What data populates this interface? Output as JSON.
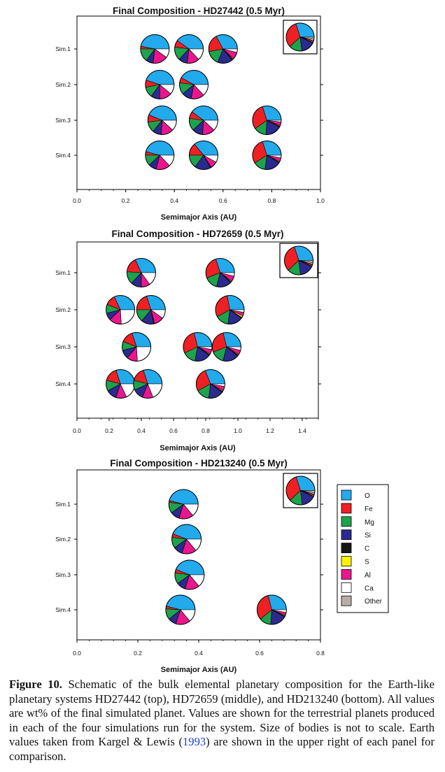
{
  "colors": {
    "O": "#22aaec",
    "Fe": "#ee2024",
    "Mg": "#1ea24c",
    "Si": "#2b2a8f",
    "C": "#161616",
    "S": "#fff200",
    "Al": "#ec168c",
    "Ca": "#ffffff",
    "Other": "#b8aea6"
  },
  "legend": {
    "entries": [
      "O",
      "Fe",
      "Mg",
      "Si",
      "C",
      "S",
      "Al",
      "Ca",
      "Other"
    ]
  },
  "chart_data": [
    {
      "type": "pie",
      "title": "Final Composition - HD27442 (0.5 Myr)",
      "xlabel": "Semimajor Axis (AU)",
      "xlim": [
        0,
        1.0
      ],
      "xticks": [
        "0.0",
        "0.2",
        "0.4",
        "0.6",
        "0.8",
        "1.0"
      ],
      "categories": [
        "Sim.1",
        "Sim.2",
        "Sim.3",
        "Sim.4"
      ],
      "earth_values_wt_percent": {
        "O": 30,
        "Fe": 32,
        "Mg": 15,
        "Si": 16,
        "C": 0.5,
        "S": 1,
        "Al": 1.5,
        "Ca": 1.5,
        "Other": 2.5
      },
      "planets": [
        {
          "sim": "Sim.1",
          "a": 0.32,
          "composition": {
            "O": 47,
            "Fe": 3,
            "Mg": 15,
            "Si": 8,
            "C": 0,
            "S": 0,
            "Al": 17,
            "Ca": 10,
            "Other": 0
          }
        },
        {
          "sim": "Sim.1",
          "a": 0.46,
          "composition": {
            "O": 40,
            "Fe": 8,
            "Mg": 15,
            "Si": 10,
            "C": 0,
            "S": 0,
            "Al": 14,
            "Ca": 13,
            "Other": 0
          }
        },
        {
          "sim": "Sim.1",
          "a": 0.6,
          "composition": {
            "O": 33,
            "Fe": 20,
            "Mg": 16,
            "Si": 17,
            "C": 1,
            "S": 1,
            "Al": 8,
            "Ca": 4,
            "Other": 0
          }
        },
        {
          "sim": "Sim.2",
          "a": 0.34,
          "composition": {
            "O": 45,
            "Fe": 8,
            "Mg": 12,
            "Si": 10,
            "C": 0,
            "S": 0,
            "Al": 14,
            "Ca": 11,
            "Other": 0
          }
        },
        {
          "sim": "Sim.2",
          "a": 0.48,
          "composition": {
            "O": 42,
            "Fe": 6,
            "Mg": 13,
            "Si": 11,
            "C": 0,
            "S": 0,
            "Al": 15,
            "Ca": 13,
            "Other": 0
          }
        },
        {
          "sim": "Sim.3",
          "a": 0.35,
          "composition": {
            "O": 44,
            "Fe": 8,
            "Mg": 12,
            "Si": 10,
            "C": 0,
            "S": 0,
            "Al": 14,
            "Ca": 12,
            "Other": 0
          }
        },
        {
          "sim": "Sim.3",
          "a": 0.52,
          "composition": {
            "O": 40,
            "Fe": 8,
            "Mg": 14,
            "Si": 12,
            "C": 0,
            "S": 0,
            "Al": 14,
            "Ca": 12,
            "Other": 0
          }
        },
        {
          "sim": "Sim.3",
          "a": 0.78,
          "composition": {
            "O": 30,
            "Fe": 30,
            "Mg": 14,
            "Si": 18,
            "C": 1,
            "S": 1,
            "Al": 4,
            "Ca": 2,
            "Other": 0
          }
        },
        {
          "sim": "Sim.4",
          "a": 0.34,
          "composition": {
            "O": 46,
            "Fe": 4,
            "Mg": 12,
            "Si": 9,
            "C": 0,
            "S": 0,
            "Al": 16,
            "Ca": 13,
            "Other": 0
          }
        },
        {
          "sim": "Sim.4",
          "a": 0.52,
          "composition": {
            "O": 36,
            "Fe": 14,
            "Mg": 15,
            "Si": 18,
            "C": 1,
            "S": 0,
            "Al": 8,
            "Ca": 8,
            "Other": 0
          }
        },
        {
          "sim": "Sim.4",
          "a": 0.78,
          "composition": {
            "O": 30,
            "Fe": 29,
            "Mg": 14,
            "Si": 18,
            "C": 1,
            "S": 1,
            "Al": 4,
            "Ca": 3,
            "Other": 0
          }
        }
      ]
    },
    {
      "type": "pie",
      "title": "Final Composition - HD72659 (0.5 Myr)",
      "xlabel": "Semimajor Axis (AU)",
      "xlim": [
        0,
        1.5
      ],
      "xticks": [
        "0.0",
        "0.2",
        "0.4",
        "0.6",
        "0.8",
        "1.0",
        "1.2",
        "1.4"
      ],
      "categories": [
        "Sim.1",
        "Sim.2",
        "Sim.3",
        "Sim.4"
      ],
      "earth_values_wt_percent": {
        "O": 30,
        "Fe": 32,
        "Mg": 15,
        "Si": 16,
        "C": 0.5,
        "S": 1,
        "Al": 1.5,
        "Ca": 1.5,
        "Other": 2.5
      },
      "planets": [
        {
          "sim": "Sim.1",
          "a": 0.4,
          "composition": {
            "O": 32,
            "Fe": 17,
            "Mg": 14,
            "Si": 12,
            "C": 0,
            "S": 0,
            "Al": 10,
            "Ca": 15,
            "Other": 0
          }
        },
        {
          "sim": "Sim.1",
          "a": 0.89,
          "composition": {
            "O": 30,
            "Fe": 26,
            "Mg": 15,
            "Si": 17,
            "C": 1,
            "S": 1,
            "Al": 6,
            "Ca": 4,
            "Other": 0
          }
        },
        {
          "sim": "Sim.2",
          "a": 0.27,
          "composition": {
            "O": 32,
            "Fe": 12,
            "Mg": 10,
            "Si": 8,
            "C": 0,
            "S": 0,
            "Al": 14,
            "Ca": 24,
            "Other": 0
          }
        },
        {
          "sim": "Sim.2",
          "a": 0.46,
          "composition": {
            "O": 30,
            "Fe": 20,
            "Mg": 14,
            "Si": 14,
            "C": 1,
            "S": 0,
            "Al": 11,
            "Ca": 10,
            "Other": 0
          }
        },
        {
          "sim": "Sim.2",
          "a": 0.95,
          "composition": {
            "O": 28,
            "Fe": 30,
            "Mg": 15,
            "Si": 17,
            "C": 1,
            "S": 2,
            "Al": 4,
            "Ca": 3,
            "Other": 0
          }
        },
        {
          "sim": "Sim.3",
          "a": 0.37,
          "composition": {
            "O": 30,
            "Fe": 14,
            "Mg": 10,
            "Si": 10,
            "C": 0,
            "S": 0,
            "Al": 12,
            "Ca": 24,
            "Other": 0
          }
        },
        {
          "sim": "Sim.3",
          "a": 0.75,
          "composition": {
            "O": 29,
            "Fe": 28,
            "Mg": 15,
            "Si": 18,
            "C": 1,
            "S": 1,
            "Al": 5,
            "Ca": 3,
            "Other": 0
          }
        },
        {
          "sim": "Sim.3",
          "a": 0.93,
          "composition": {
            "O": 29,
            "Fe": 27,
            "Mg": 15,
            "Si": 18,
            "C": 1,
            "S": 1,
            "Al": 5,
            "Ca": 4,
            "Other": 0
          }
        },
        {
          "sim": "Sim.4",
          "a": 0.27,
          "composition": {
            "O": 30,
            "Fe": 16,
            "Mg": 12,
            "Si": 12,
            "C": 0,
            "S": 0,
            "Al": 12,
            "Ca": 18,
            "Other": 0
          }
        },
        {
          "sim": "Sim.4",
          "a": 0.44,
          "composition": {
            "O": 30,
            "Fe": 16,
            "Mg": 11,
            "Si": 12,
            "C": 0,
            "S": 0,
            "Al": 12,
            "Ca": 19,
            "Other": 0
          }
        },
        {
          "sim": "Sim.4",
          "a": 0.83,
          "composition": {
            "O": 31,
            "Fe": 27,
            "Mg": 15,
            "Si": 17,
            "C": 1,
            "S": 1,
            "Al": 5,
            "Ca": 3,
            "Other": 0
          }
        }
      ]
    },
    {
      "type": "pie",
      "title": "Final Composition - HD213240 (0.5 Myr)",
      "xlabel": "Semimajor Axis (AU)",
      "xlim": [
        0,
        0.8
      ],
      "xticks": [
        "0.0",
        "0.2",
        "0.4",
        "0.6",
        "0.8"
      ],
      "categories": [
        "Sim.1",
        "Sim.2",
        "Sim.3",
        "Sim.4"
      ],
      "earth_values_wt_percent": {
        "O": 30,
        "Fe": 32,
        "Mg": 15,
        "Si": 16,
        "C": 0.5,
        "S": 1,
        "Al": 1.5,
        "Ca": 1.5,
        "Other": 2.5
      },
      "planets": [
        {
          "sim": "Sim.1",
          "a": 0.35,
          "composition": {
            "O": 46,
            "Fe": 2,
            "Mg": 12,
            "Si": 10,
            "C": 0,
            "S": 0,
            "Al": 16,
            "Ca": 14,
            "Other": 0
          }
        },
        {
          "sim": "Sim.2",
          "a": 0.36,
          "composition": {
            "O": 44,
            "Fe": 4,
            "Mg": 12,
            "Si": 10,
            "C": 0,
            "S": 0,
            "Al": 16,
            "Ca": 14,
            "Other": 0
          }
        },
        {
          "sim": "Sim.3",
          "a": 0.37,
          "composition": {
            "O": 44,
            "Fe": 4,
            "Mg": 12,
            "Si": 10,
            "C": 0,
            "S": 0,
            "Al": 16,
            "Ca": 14,
            "Other": 0
          }
        },
        {
          "sim": "Sim.4",
          "a": 0.34,
          "composition": {
            "O": 46,
            "Fe": 3,
            "Mg": 12,
            "Si": 9,
            "C": 0,
            "S": 0,
            "Al": 16,
            "Ca": 14,
            "Other": 0
          }
        },
        {
          "sim": "Sim.4",
          "a": 0.64,
          "composition": {
            "O": 29,
            "Fe": 32,
            "Mg": 13,
            "Si": 18,
            "C": 1,
            "S": 1,
            "Al": 3,
            "Ca": 3,
            "Other": 0
          }
        }
      ]
    }
  ],
  "caption": {
    "label": "Figure 10.",
    "text_before_link": " Schematic of the bulk elemental planetary composition for the Earth-like planetary systems HD27442 (top), HD72659 (middle), and HD213240 (bottom). All values are wt% of the final simulated planet. Values are shown for the terrestrial planets produced in each of the four simulations run for the system. Size of bodies is not to scale. Earth values taken from Kargel & Lewis (",
    "link_text": "1993",
    "text_after_link": ") are shown in the upper right of each panel for comparison."
  }
}
